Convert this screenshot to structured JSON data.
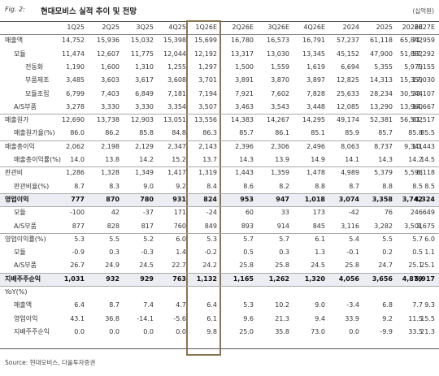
{
  "figure": {
    "label": "Fig. 2:",
    "title": "현대모비스 실적 추이 및 전망",
    "unit": "(십억원)",
    "source": "Source: 현대모비스, 다올투자증권"
  },
  "columns": [
    "1Q25",
    "2Q25",
    "3Q25",
    "4Q25",
    "1Q26E",
    "2Q26E",
    "3Q26E",
    "4Q26E",
    "2024",
    "2025",
    "2026E",
    "2027E"
  ],
  "highlight_column": "1Q26E",
  "rows": [
    {
      "label": "매출액",
      "style": "main",
      "values": [
        "14,752",
        "15,936",
        "15,032",
        "15,398",
        "15,699",
        "16,780",
        "16,573",
        "16,791",
        "57,237",
        "61,118",
        "65,842",
        "71,959"
      ]
    },
    {
      "label": "모듈",
      "style": "sub1",
      "values": [
        "11,474",
        "12,607",
        "11,775",
        "12,044",
        "12,192",
        "13,317",
        "13,030",
        "13,345",
        "45,152",
        "47,900",
        "51,882",
        "57,292"
      ]
    },
    {
      "label": "전동화",
      "style": "sub2",
      "values": [
        "1,190",
        "1,600",
        "1,310",
        "1,255",
        "1,297",
        "1,500",
        "1,559",
        "1,619",
        "6,694",
        "5,355",
        "5,979",
        "7,155"
      ]
    },
    {
      "label": "부품제조",
      "style": "sub2",
      "values": [
        "3,485",
        "3,603",
        "3,617",
        "3,608",
        "3,701",
        "3,891",
        "3,870",
        "3,897",
        "12,825",
        "14,313",
        "15,359",
        "17,030"
      ]
    },
    {
      "label": "모듈조립",
      "style": "sub2",
      "values": [
        "6,799",
        "7,403",
        "6,849",
        "7,181",
        "7,194",
        "7,921",
        "7,602",
        "7,828",
        "25,633",
        "28,234",
        "30,544",
        "33,107"
      ]
    },
    {
      "label": "A/S부품",
      "style": "sub1",
      "values": [
        "3,278",
        "3,330",
        "3,330",
        "3,354",
        "3,507",
        "3,463",
        "3,543",
        "3,448",
        "12,085",
        "13,290",
        "13,960",
        "14,667"
      ]
    },
    {
      "label": "매출원가",
      "style": "main",
      "values": [
        "12,690",
        "13,738",
        "12,903",
        "13,051",
        "13,556",
        "14,383",
        "14,267",
        "14,295",
        "49,174",
        "52,381",
        "56,502",
        "61,517"
      ]
    },
    {
      "label": "매출원가율(%)",
      "style": "sub1",
      "values": [
        "86.0",
        "86.2",
        "85.8",
        "84.8",
        "86.3",
        "85.7",
        "86.1",
        "85.1",
        "85.9",
        "85.7",
        "85.8",
        "85.5"
      ]
    },
    {
      "label": "매출총이익",
      "style": "main",
      "values": [
        "2,062",
        "2,198",
        "2,129",
        "2,347",
        "2,143",
        "2,396",
        "2,306",
        "2,496",
        "8,063",
        "8,737",
        "9,341",
        "10,443"
      ]
    },
    {
      "label": "매출총이익률(%)",
      "style": "sub1",
      "values": [
        "14.0",
        "13.8",
        "14.2",
        "15.2",
        "13.7",
        "14.3",
        "13.9",
        "14.9",
        "14.1",
        "14.3",
        "14.2",
        "14.5"
      ]
    },
    {
      "label": "판관비",
      "style": "main",
      "values": [
        "1,286",
        "1,328",
        "1,349",
        "1,417",
        "1,319",
        "1,443",
        "1,359",
        "1,478",
        "4,989",
        "5,379",
        "5,598",
        "6,118"
      ]
    },
    {
      "label": "판관비율(%)",
      "style": "sub1",
      "values": [
        "8.7",
        "8.3",
        "9.0",
        "9.2",
        "8.4",
        "8.6",
        "8.2",
        "8.8",
        "8.7",
        "8.8",
        "8.5",
        "8.5"
      ]
    },
    {
      "label": "영업이익",
      "style": "bold",
      "values": [
        "777",
        "870",
        "780",
        "931",
        "824",
        "953",
        "947",
        "1,018",
        "3,074",
        "3,358",
        "3,742",
        "4,324"
      ]
    },
    {
      "label": "모듈",
      "style": "sub1",
      "values": [
        "-100",
        "42",
        "-37",
        "171",
        "-24",
        "60",
        "33",
        "173",
        "-42",
        "76",
        "246",
        "649"
      ]
    },
    {
      "label": "A/S부품",
      "style": "sub1",
      "values": [
        "877",
        "828",
        "817",
        "760",
        "849",
        "893",
        "914",
        "845",
        "3,116",
        "3,282",
        "3,501",
        "3,675"
      ]
    },
    {
      "label": "영업이익률(%)",
      "style": "main",
      "values": [
        "5.3",
        "5.5",
        "5.2",
        "6.0",
        "5.3",
        "5.7",
        "5.7",
        "6.1",
        "5.4",
        "5.5",
        "5.7",
        "6.0"
      ]
    },
    {
      "label": "모듈",
      "style": "sub1",
      "values": [
        "-0.9",
        "0.3",
        "-0.3",
        "1.4",
        "-0.2",
        "0.5",
        "0.3",
        "1.3",
        "-0.1",
        "0.2",
        "0.5",
        "1.1"
      ]
    },
    {
      "label": "A/S부품",
      "style": "sub1",
      "values": [
        "26.7",
        "24.9",
        "24.5",
        "22.7",
        "24.2",
        "25.8",
        "25.8",
        "24.5",
        "25.8",
        "24.7",
        "25.1",
        "25.1"
      ]
    },
    {
      "label": "지배주주순익",
      "style": "bold",
      "values": [
        "1,031",
        "932",
        "929",
        "763",
        "1,132",
        "1,165",
        "1,262",
        "1,320",
        "4,056",
        "3,656",
        "4,879",
        "5,917"
      ]
    },
    {
      "label": "YoY(%)",
      "style": "main",
      "values": [
        "",
        "",
        "",
        "",
        "",
        "",
        "",
        "",
        "",
        "",
        "",
        ""
      ]
    },
    {
      "label": "매출액",
      "style": "sub1",
      "values": [
        "6.4",
        "8.7",
        "7.4",
        "4.7",
        "6.4",
        "5.3",
        "10.2",
        "9.0",
        "-3.4",
        "6.8",
        "7.7",
        "9.3"
      ]
    },
    {
      "label": "영업이익",
      "style": "sub1",
      "values": [
        "43.1",
        "36.8",
        "-14.1",
        "-5.6",
        "6.1",
        "9.6",
        "21.3",
        "9.4",
        "33.9",
        "9.2",
        "11.5",
        "15.5"
      ]
    },
    {
      "label": "지배주주순익",
      "style": "sub1",
      "values": [
        "0.0",
        "0.0",
        "0.0",
        "0.0",
        "9.8",
        "25.0",
        "35.8",
        "73.0",
        "0.0",
        "-9.9",
        "33.5",
        "21.3"
      ]
    }
  ]
}
